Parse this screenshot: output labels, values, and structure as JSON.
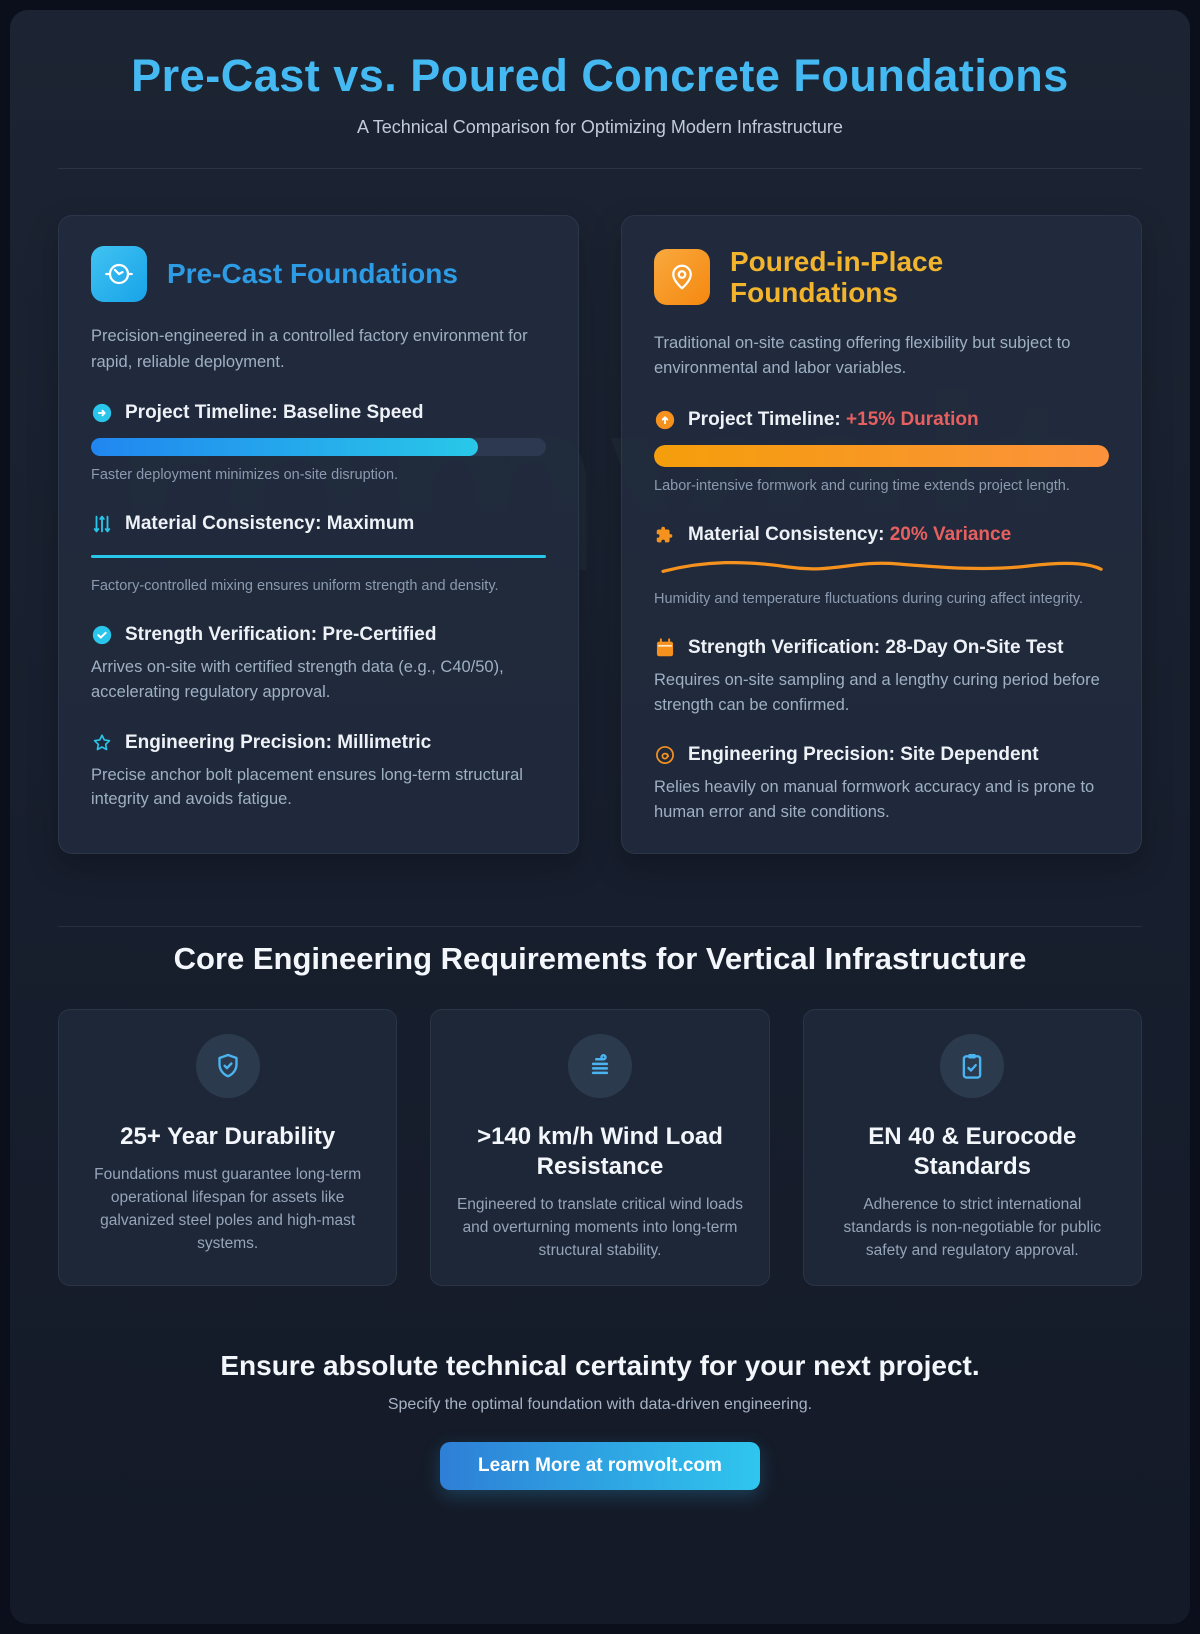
{
  "colors": {
    "page_title": "#45b9f2",
    "precast_accent": "#2e9be5",
    "precast_cyan": "#29c5ea",
    "poured_accent": "#f1b42c",
    "poured_orange": "#f5921e",
    "negative_red": "#e66060",
    "button_gradient_start": "#2e7fd6",
    "button_gradient_end": "#2fc6ee"
  },
  "header": {
    "title": "Pre-Cast vs. Poured Concrete Foundations",
    "subtitle": "A Technical Comparison for Optimizing Modern Infrastructure"
  },
  "watermark": "romvolt",
  "precast": {
    "icon": "timer-icon",
    "title": "Pre-Cast Foundations",
    "description": "Precision-engineered in a controlled factory environment for rapid, reliable deployment.",
    "metrics": [
      {
        "icon": "circle-arrow-right-icon",
        "label": "Project Timeline:",
        "value": "Baseline Speed",
        "progress_pct": 85,
        "caption": "Faster deployment minimizes on-site disruption."
      },
      {
        "icon": "sliders-icon",
        "label": "Material Consistency:",
        "value": "Maximum",
        "caption": "Factory-controlled mixing ensures uniform strength and density."
      },
      {
        "icon": "badge-check-icon",
        "label": "Strength Verification:",
        "value": "Pre-Certified",
        "caption": "Arrives on-site with certified strength data (e.g., C40/50), accelerating regulatory approval."
      },
      {
        "icon": "star-icon",
        "label": "Engineering Precision:",
        "value": "Millimetric",
        "caption": "Precise anchor bolt placement ensures long-term structural integrity and avoids fatigue."
      }
    ]
  },
  "poured": {
    "icon": "map-pin-icon",
    "title": "Poured-in-Place Foundations",
    "description": "Traditional on-site casting offering flexibility but subject to environmental and labor variables.",
    "metrics": [
      {
        "icon": "circle-arrow-up-icon",
        "label": "Project Timeline:",
        "value": "+15% Duration",
        "progress_pct": 100,
        "caption": "Labor-intensive formwork and curing time extends project length."
      },
      {
        "icon": "puzzle-icon",
        "label": "Material Consistency:",
        "value": "20% Variance",
        "caption": "Humidity and temperature fluctuations during curing affect integrity."
      },
      {
        "icon": "calendar-icon",
        "label": "Strength Verification:",
        "value": "28-Day On-Site Test",
        "caption": "Requires on-site sampling and a lengthy curing period before strength can be confirmed."
      },
      {
        "icon": "spiral-icon",
        "label": "Engineering Precision:",
        "value": "Site Dependent",
        "caption": "Relies heavily on manual formwork accuracy and is prone to human error and site conditions."
      }
    ]
  },
  "requirements": {
    "heading": "Core Engineering Requirements for Vertical Infrastructure",
    "cards": [
      {
        "icon": "shield-check-icon",
        "title": "25+ Year Durability",
        "body": "Foundations must guarantee long-term operational lifespan for assets like galvanized steel poles and high-mast systems."
      },
      {
        "icon": "wind-lines-icon",
        "title": ">140 km/h Wind Load Resistance",
        "body": "Engineered to translate critical wind loads and overturning moments into long-term structural stability."
      },
      {
        "icon": "clipboard-check-icon",
        "title": "EN 40 & Eurocode Standards",
        "body": "Adherence to strict international standards is non-negotiable for public safety and regulatory approval."
      }
    ]
  },
  "cta": {
    "heading": "Ensure absolute technical certainty for your next project.",
    "subheading": "Specify the optimal foundation with data-driven engineering.",
    "button_label": "Learn More at romvolt.com"
  }
}
